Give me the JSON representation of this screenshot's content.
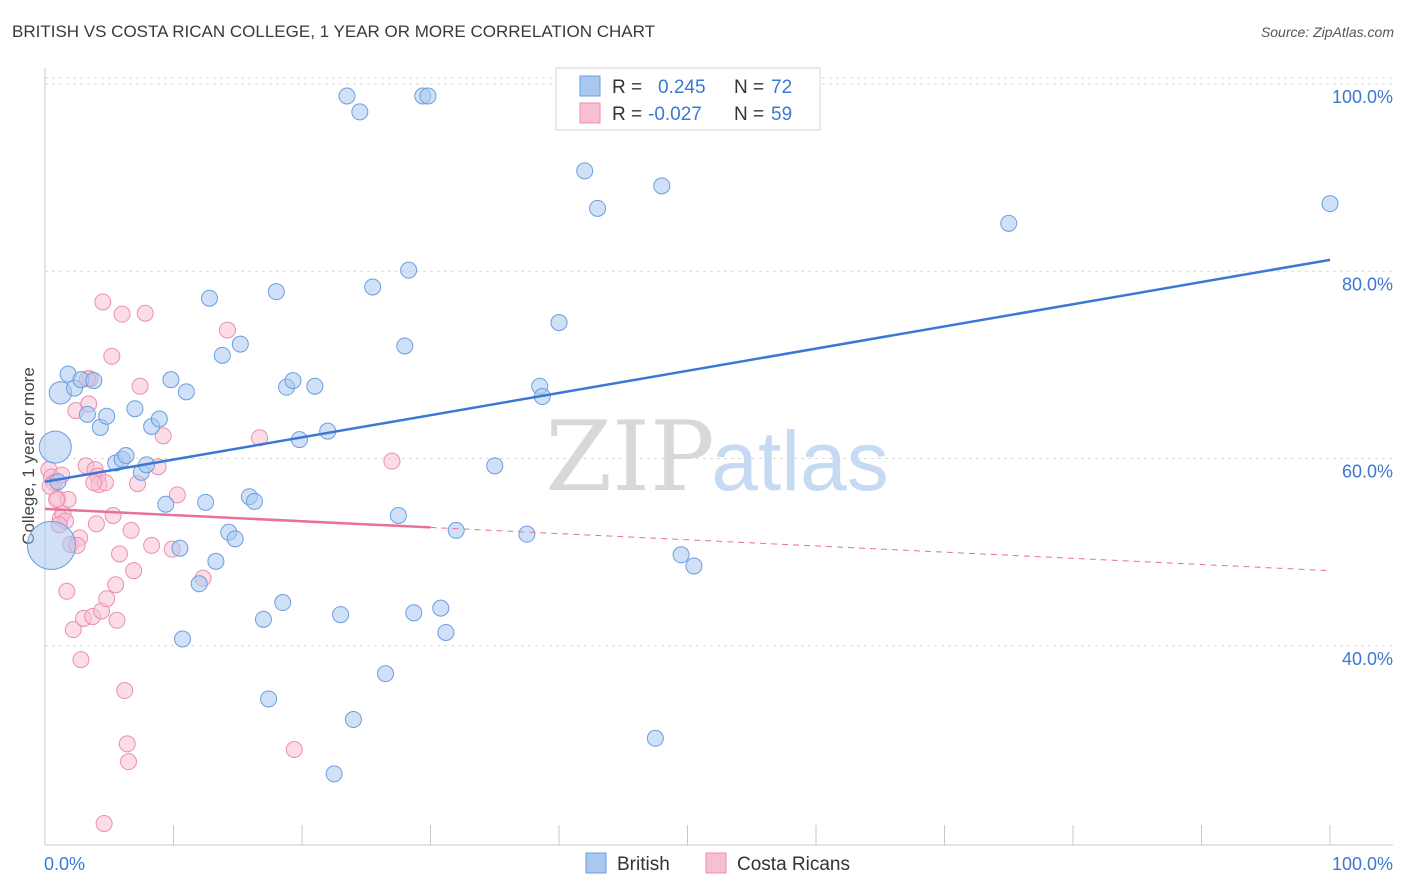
{
  "title": "BRITISH VS COSTA RICAN COLLEGE, 1 YEAR OR MORE CORRELATION CHART",
  "source": "Source: ZipAtlas.com",
  "watermark": {
    "zip": "ZIP",
    "atlas": "atlas"
  },
  "colors": {
    "blue": "#3a78d4",
    "blue_fill": "#a9c8f0",
    "blue_stroke": "#6a9ee0",
    "pink": "#e8709a",
    "pink_fill": "#f7bfd3",
    "pink_stroke": "#eb8fb0",
    "grid": "#d8d8d8",
    "tick_label": "#3a78d4"
  },
  "legend": {
    "rows": [
      {
        "r_label": "R =",
        "r_value": "0.245",
        "n_label": "N =",
        "n_value": "72"
      },
      {
        "r_label": "R =",
        "r_value": "-0.027",
        "n_label": "N =",
        "n_value": "59"
      }
    ]
  },
  "bottom_legend": {
    "british": "British",
    "costa_ricans": "Costa Ricans"
  },
  "chart_data": {
    "type": "scatter",
    "title": "BRITISH VS COSTA RICAN COLLEGE, 1 YEAR OR MORE CORRELATION CHART",
    "xlabel": "",
    "ylabel": "College, 1 year or more",
    "xlim": [
      0,
      100
    ],
    "ylim": [
      20,
      102
    ],
    "x_tick_labels": [
      "0.0%",
      "100.0%"
    ],
    "y_ticks": [
      {
        "value": 100,
        "label": "100.0%"
      },
      {
        "value": 80,
        "label": "80.0%"
      },
      {
        "value": 60,
        "label": "60.0%"
      },
      {
        "value": 40,
        "label": "40.0%"
      }
    ],
    "series": [
      {
        "name": "British",
        "r": 0.245,
        "n": 72,
        "trend": {
          "x": [
            0,
            100
          ],
          "y": [
            58.8,
            82.5
          ],
          "dashed_from": null
        },
        "points": [
          {
            "x": 0.5,
            "y": 52,
            "s": 3
          },
          {
            "x": 0.8,
            "y": 62.5,
            "s": 2
          },
          {
            "x": 1.2,
            "y": 68.3,
            "s": 1.4
          },
          {
            "x": 1.8,
            "y": 70.3
          },
          {
            "x": 2.3,
            "y": 68.8
          },
          {
            "x": 2.8,
            "y": 69.7
          },
          {
            "x": 3.3,
            "y": 66.0
          },
          {
            "x": 3.8,
            "y": 69.6
          },
          {
            "x": 4.3,
            "y": 64.6
          },
          {
            "x": 4.8,
            "y": 65.8
          },
          {
            "x": 5.5,
            "y": 60.8
          },
          {
            "x": 6.0,
            "y": 61.2
          },
          {
            "x": 6.3,
            "y": 61.6
          },
          {
            "x": 7.0,
            "y": 66.6
          },
          {
            "x": 7.5,
            "y": 59.8
          },
          {
            "x": 7.9,
            "y": 60.6
          },
          {
            "x": 8.3,
            "y": 64.7
          },
          {
            "x": 8.9,
            "y": 65.5
          },
          {
            "x": 9.4,
            "y": 56.4
          },
          {
            "x": 9.8,
            "y": 69.7
          },
          {
            "x": 10.5,
            "y": 51.7
          },
          {
            "x": 10.7,
            "y": 42.0
          },
          {
            "x": 11.0,
            "y": 68.4
          },
          {
            "x": 12.0,
            "y": 47.9
          },
          {
            "x": 12.5,
            "y": 56.6
          },
          {
            "x": 12.8,
            "y": 78.4
          },
          {
            "x": 13.3,
            "y": 50.3
          },
          {
            "x": 13.8,
            "y": 72.3
          },
          {
            "x": 14.3,
            "y": 53.4
          },
          {
            "x": 14.8,
            "y": 52.7
          },
          {
            "x": 15.2,
            "y": 73.5
          },
          {
            "x": 15.9,
            "y": 57.2
          },
          {
            "x": 16.3,
            "y": 56.7
          },
          {
            "x": 17.0,
            "y": 44.1
          },
          {
            "x": 17.4,
            "y": 35.6
          },
          {
            "x": 18.0,
            "y": 79.1
          },
          {
            "x": 18.5,
            "y": 45.9
          },
          {
            "x": 18.8,
            "y": 68.9
          },
          {
            "x": 19.3,
            "y": 69.6
          },
          {
            "x": 19.8,
            "y": 63.3
          },
          {
            "x": 21.0,
            "y": 69.0
          },
          {
            "x": 22.0,
            "y": 64.2
          },
          {
            "x": 22.5,
            "y": 27.6
          },
          {
            "x": 23.0,
            "y": 44.6
          },
          {
            "x": 23.5,
            "y": 100.0
          },
          {
            "x": 24.0,
            "y": 33.4
          },
          {
            "x": 24.5,
            "y": 98.3
          },
          {
            "x": 25.5,
            "y": 79.6
          },
          {
            "x": 26.5,
            "y": 38.3
          },
          {
            "x": 27.5,
            "y": 55.2
          },
          {
            "x": 28.0,
            "y": 73.3
          },
          {
            "x": 28.3,
            "y": 81.4
          },
          {
            "x": 28.7,
            "y": 44.8
          },
          {
            "x": 29.4,
            "y": 100.0
          },
          {
            "x": 29.8,
            "y": 100.0
          },
          {
            "x": 30.8,
            "y": 45.3
          },
          {
            "x": 31.2,
            "y": 42.7
          },
          {
            "x": 32.0,
            "y": 53.6
          },
          {
            "x": 35.0,
            "y": 60.5
          },
          {
            "x": 37.5,
            "y": 53.2
          },
          {
            "x": 38.5,
            "y": 69.0
          },
          {
            "x": 38.7,
            "y": 67.9
          },
          {
            "x": 40.0,
            "y": 75.8
          },
          {
            "x": 42.0,
            "y": 92.0
          },
          {
            "x": 43.0,
            "y": 88.0
          },
          {
            "x": 47.5,
            "y": 31.4
          },
          {
            "x": 48.0,
            "y": 90.4
          },
          {
            "x": 49.5,
            "y": 51.0
          },
          {
            "x": 50.5,
            "y": 49.8
          },
          {
            "x": 75.0,
            "y": 86.4
          },
          {
            "x": 100.0,
            "y": 88.5
          },
          {
            "x": 1.0,
            "y": 58.8
          }
        ]
      },
      {
        "name": "Costa Ricans",
        "r": -0.027,
        "n": 59,
        "trend": {
          "x": [
            0,
            100
          ],
          "y": [
            55.9,
            49.3
          ],
          "dashed_from": 30
        },
        "points": [
          {
            "x": 0.3,
            "y": 60.1
          },
          {
            "x": 0.5,
            "y": 59.3
          },
          {
            "x": 0.7,
            "y": 58.7
          },
          {
            "x": 1.0,
            "y": 57.0
          },
          {
            "x": 1.2,
            "y": 54.9
          },
          {
            "x": 1.4,
            "y": 55.4
          },
          {
            "x": 1.6,
            "y": 54.6
          },
          {
            "x": 1.8,
            "y": 56.9
          },
          {
            "x": 2.0,
            "y": 52.1
          },
          {
            "x": 1.7,
            "y": 47.1
          },
          {
            "x": 2.2,
            "y": 43.0
          },
          {
            "x": 2.4,
            "y": 66.4
          },
          {
            "x": 2.7,
            "y": 52.8
          },
          {
            "x": 2.8,
            "y": 39.8
          },
          {
            "x": 3.0,
            "y": 44.2
          },
          {
            "x": 3.2,
            "y": 60.5
          },
          {
            "x": 3.4,
            "y": 67.1
          },
          {
            "x": 3.5,
            "y": 69.8
          },
          {
            "x": 3.7,
            "y": 44.4
          },
          {
            "x": 3.9,
            "y": 60.1
          },
          {
            "x": 4.0,
            "y": 54.3
          },
          {
            "x": 4.1,
            "y": 59.4
          },
          {
            "x": 4.2,
            "y": 58.5
          },
          {
            "x": 4.4,
            "y": 45.0
          },
          {
            "x": 4.5,
            "y": 78.0
          },
          {
            "x": 4.7,
            "y": 58.7
          },
          {
            "x": 4.8,
            "y": 46.3
          },
          {
            "x": 5.2,
            "y": 72.2
          },
          {
            "x": 5.3,
            "y": 55.2
          },
          {
            "x": 5.5,
            "y": 47.8
          },
          {
            "x": 5.6,
            "y": 44.0
          },
          {
            "x": 5.8,
            "y": 51.1
          },
          {
            "x": 6.0,
            "y": 76.7
          },
          {
            "x": 6.2,
            "y": 36.5
          },
          {
            "x": 6.4,
            "y": 30.8
          },
          {
            "x": 6.5,
            "y": 28.9
          },
          {
            "x": 6.7,
            "y": 53.6
          },
          {
            "x": 6.9,
            "y": 49.3
          },
          {
            "x": 7.2,
            "y": 58.6
          },
          {
            "x": 7.4,
            "y": 69.0
          },
          {
            "x": 7.8,
            "y": 76.8
          },
          {
            "x": 8.3,
            "y": 52.0
          },
          {
            "x": 8.8,
            "y": 60.4
          },
          {
            "x": 9.2,
            "y": 63.7
          },
          {
            "x": 9.9,
            "y": 51.6
          },
          {
            "x": 10.3,
            "y": 57.4
          },
          {
            "x": 12.3,
            "y": 48.5
          },
          {
            "x": 14.2,
            "y": 75.0
          },
          {
            "x": 16.7,
            "y": 63.5
          },
          {
            "x": 19.4,
            "y": 30.2
          },
          {
            "x": 27.0,
            "y": 61.0
          },
          {
            "x": 4.6,
            "y": 22.3
          },
          {
            "x": 3.3,
            "y": 69.8
          },
          {
            "x": 0.4,
            "y": 58.3
          },
          {
            "x": 1.3,
            "y": 59.5
          },
          {
            "x": 2.5,
            "y": 52.0
          },
          {
            "x": 0.9,
            "y": 56.9
          },
          {
            "x": 3.8,
            "y": 58.7
          },
          {
            "x": 1.1,
            "y": 54.2
          }
        ]
      }
    ]
  }
}
